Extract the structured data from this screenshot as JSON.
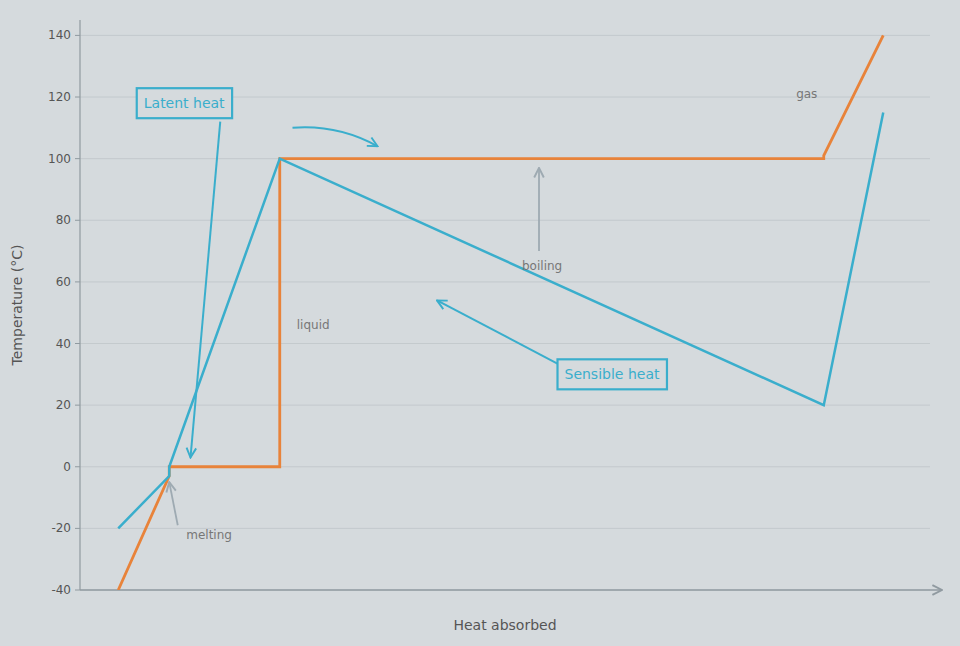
{
  "chart_data": {
    "type": "line",
    "xlabel": "Heat absorbed",
    "ylabel": "Temperature (°C)",
    "xlim": [
      0,
      10
    ],
    "ylim": [
      -40,
      145
    ],
    "yticks": [
      -40,
      -20,
      0,
      20,
      40,
      60,
      80,
      100,
      120,
      140
    ],
    "tick_labels": "y",
    "grid": true,
    "series": [
      {
        "color": "#e8833a",
        "x": [
          0.45,
          1.05,
          1.05,
          2.35,
          2.35,
          8.75,
          8.75,
          9.45
        ],
        "values": [
          -40,
          -3,
          0,
          0,
          100,
          100,
          101,
          140
        ]
      },
      {
        "color": "#3aaecc",
        "x": [
          0.45,
          1.05,
          1.05,
          2.35,
          8.75,
          9.45
        ],
        "values": [
          -20,
          -3,
          0,
          100,
          20,
          115
        ]
      }
    ],
    "annotations": [
      {
        "text": "Latent heat",
        "x": 0.75,
        "y": 118,
        "arrows": [
          {
            "from": [
              1.65,
              112
            ],
            "to": [
              1.3,
              3
            ]
          },
          {
            "from": [
              2.5,
              110
            ],
            "to": [
              3.5,
              104
            ]
          }
        ]
      },
      {
        "text": "Sensible heat",
        "x": 5.7,
        "y": 30,
        "arrows": [
          {
            "from": [
              5.65,
              33
            ],
            "to": [
              4.2,
              54
            ]
          }
        ]
      },
      {
        "text": "liquid",
        "x": 2.55,
        "y": 46
      },
      {
        "text": "boiling",
        "x": 5.2,
        "y": 65,
        "arrows": [
          {
            "from": [
              5.4,
              70
            ],
            "to": [
              5.4,
              97
            ]
          }
        ]
      },
      {
        "text": "melting",
        "x": 1.25,
        "y": -22,
        "arrows": [
          {
            "from": [
              1.15,
              -19
            ],
            "to": [
              1.05,
              -5
            ]
          }
        ]
      },
      {
        "text": "gas",
        "x": 8.55,
        "y": 121
      }
    ]
  }
}
